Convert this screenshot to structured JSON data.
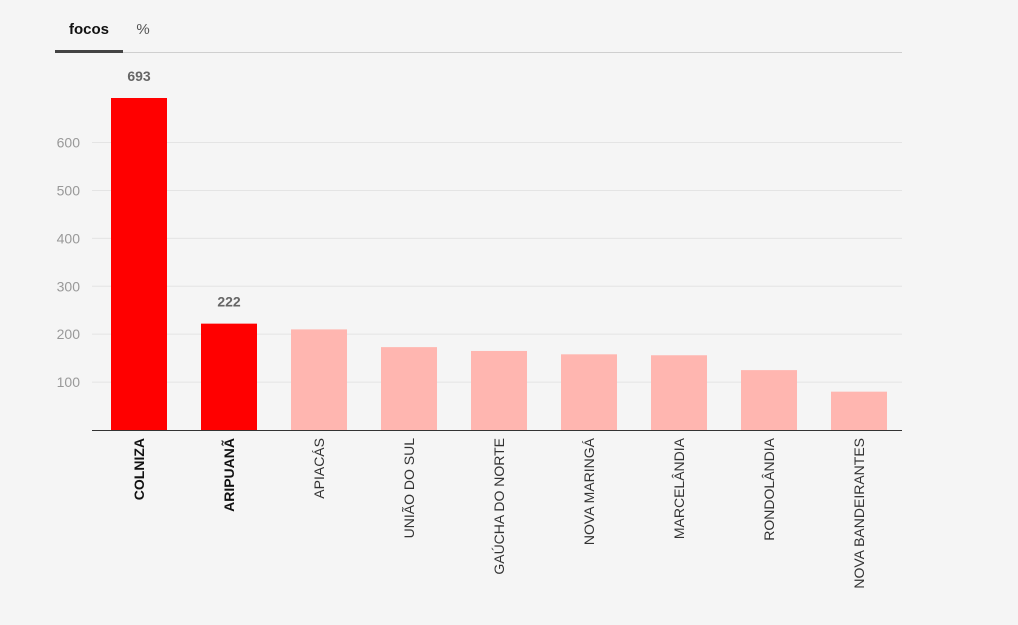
{
  "tabs": [
    {
      "label": "focos",
      "active": true
    },
    {
      "label": "%",
      "active": false
    }
  ],
  "colors": {
    "highlight": "#ff0000",
    "normal": "#ffb6b0",
    "grid": "#e4e4e4",
    "axis": "#333333"
  },
  "chart_data": {
    "type": "bar",
    "title": "",
    "xlabel": "",
    "ylabel": "",
    "categories": [
      "COLNIZA",
      "ARIPUANÃ",
      "APIACÁS",
      "UNIÃO DO SUL",
      "GAÚCHA DO NORTE",
      "NOVA MARINGÁ",
      "MARCELÂNDIA",
      "RONDOLÂNDIA",
      "NOVA BANDEIRANTES"
    ],
    "values": [
      693,
      222,
      210,
      173,
      165,
      158,
      156,
      125,
      80
    ],
    "highlighted": [
      true,
      true,
      false,
      false,
      false,
      false,
      false,
      false,
      false
    ],
    "data_labels": [
      "693",
      "222",
      "",
      "",
      "",
      "",
      "",
      "",
      ""
    ],
    "yticks": [
      100,
      200,
      300,
      400,
      500,
      600
    ],
    "ylim": [
      0,
      693
    ],
    "grid": true,
    "legend": "none"
  }
}
